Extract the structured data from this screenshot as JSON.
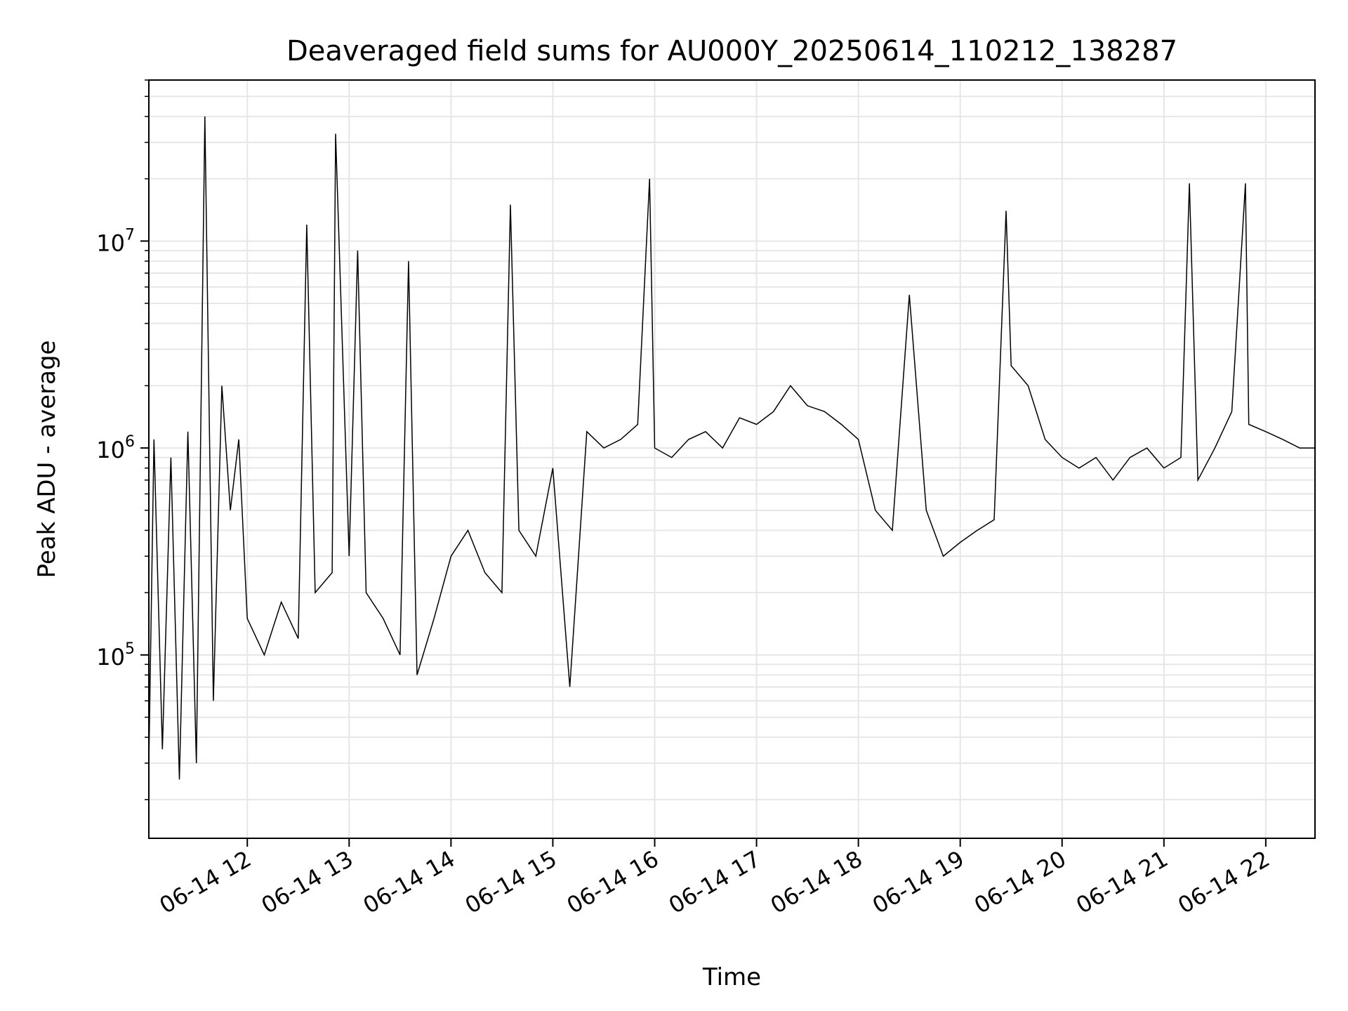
{
  "chart_data": {
    "type": "line",
    "title": "Deaveraged field sums for AU000Y_20250614_110212_138287",
    "xlabel": "Time",
    "ylabel": "Peak ADU - average",
    "yscale": "log",
    "ylim": [
      13000,
      60000000
    ],
    "xlim": [
      "2025-06-14 11:02",
      "2025-06-14 22:29"
    ],
    "grid": true,
    "line_color": "#000000",
    "grid_color": "#e6e6e6",
    "x_ticks": [
      {
        "value": "2025-06-14 12:00",
        "label": "06-14 12"
      },
      {
        "value": "2025-06-14 13:00",
        "label": "06-14 13"
      },
      {
        "value": "2025-06-14 14:00",
        "label": "06-14 14"
      },
      {
        "value": "2025-06-14 15:00",
        "label": "06-14 15"
      },
      {
        "value": "2025-06-14 16:00",
        "label": "06-14 16"
      },
      {
        "value": "2025-06-14 17:00",
        "label": "06-14 17"
      },
      {
        "value": "2025-06-14 18:00",
        "label": "06-14 18"
      },
      {
        "value": "2025-06-14 19:00",
        "label": "06-14 19"
      },
      {
        "value": "2025-06-14 20:00",
        "label": "06-14 20"
      },
      {
        "value": "2025-06-14 21:00",
        "label": "06-14 21"
      },
      {
        "value": "2025-06-14 22:00",
        "label": "06-14 22"
      }
    ],
    "y_ticks": [
      {
        "value": 100000,
        "base": "10",
        "exp": "5"
      },
      {
        "value": 1000000,
        "base": "10",
        "exp": "6"
      },
      {
        "value": 10000000,
        "base": "10",
        "exp": "7"
      }
    ],
    "series": [
      {
        "x": [
          "2025-06-14 11:02",
          "2025-06-14 11:05",
          "2025-06-14 11:10",
          "2025-06-14 11:15",
          "2025-06-14 11:20",
          "2025-06-14 11:25",
          "2025-06-14 11:30",
          "2025-06-14 11:35",
          "2025-06-14 11:40",
          "2025-06-14 11:45",
          "2025-06-14 11:50",
          "2025-06-14 11:55",
          "2025-06-14 12:00",
          "2025-06-14 12:10",
          "2025-06-14 12:20",
          "2025-06-14 12:30",
          "2025-06-14 12:35",
          "2025-06-14 12:40",
          "2025-06-14 12:50",
          "2025-06-14 12:52",
          "2025-06-14 13:00",
          "2025-06-14 13:05",
          "2025-06-14 13:10",
          "2025-06-14 13:20",
          "2025-06-14 13:30",
          "2025-06-14 13:35",
          "2025-06-14 13:40",
          "2025-06-14 13:50",
          "2025-06-14 14:00",
          "2025-06-14 14:10",
          "2025-06-14 14:20",
          "2025-06-14 14:30",
          "2025-06-14 14:35",
          "2025-06-14 14:40",
          "2025-06-14 14:50",
          "2025-06-14 15:00",
          "2025-06-14 15:10",
          "2025-06-14 15:20",
          "2025-06-14 15:30",
          "2025-06-14 15:40",
          "2025-06-14 15:50",
          "2025-06-14 15:57",
          "2025-06-14 16:00",
          "2025-06-14 16:10",
          "2025-06-14 16:20",
          "2025-06-14 16:30",
          "2025-06-14 16:40",
          "2025-06-14 16:50",
          "2025-06-14 17:00",
          "2025-06-14 17:10",
          "2025-06-14 17:20",
          "2025-06-14 17:30",
          "2025-06-14 17:40",
          "2025-06-14 17:50",
          "2025-06-14 18:00",
          "2025-06-14 18:10",
          "2025-06-14 18:20",
          "2025-06-14 18:30",
          "2025-06-14 18:40",
          "2025-06-14 18:50",
          "2025-06-14 19:00",
          "2025-06-14 19:10",
          "2025-06-14 19:20",
          "2025-06-14 19:27",
          "2025-06-14 19:30",
          "2025-06-14 19:40",
          "2025-06-14 19:50",
          "2025-06-14 20:00",
          "2025-06-14 20:10",
          "2025-06-14 20:20",
          "2025-06-14 20:30",
          "2025-06-14 20:40",
          "2025-06-14 20:50",
          "2025-06-14 21:00",
          "2025-06-14 21:10",
          "2025-06-14 21:15",
          "2025-06-14 21:20",
          "2025-06-14 21:30",
          "2025-06-14 21:40",
          "2025-06-14 21:48",
          "2025-06-14 21:50",
          "2025-06-14 22:00",
          "2025-06-14 22:10",
          "2025-06-14 22:20",
          "2025-06-14 22:29"
        ],
        "values": [
          30000,
          1100000,
          35000,
          900000,
          25000,
          1200000,
          30000,
          40000000,
          60000,
          2000000,
          500000,
          1100000,
          150000,
          100000,
          180000,
          120000,
          12000000,
          200000,
          250000,
          33000000,
          300000,
          9000000,
          200000,
          150000,
          100000,
          8000000,
          80000,
          150000,
          300000,
          400000,
          250000,
          200000,
          15000000,
          400000,
          300000,
          800000,
          70000,
          1200000,
          1000000,
          1100000,
          1300000,
          20000000,
          1000000,
          900000,
          1100000,
          1200000,
          1000000,
          1400000,
          1300000,
          1500000,
          2000000,
          1600000,
          1500000,
          1300000,
          1100000,
          500000,
          400000,
          5500000,
          500000,
          300000,
          350000,
          400000,
          450000,
          14000000,
          2500000,
          2000000,
          1100000,
          900000,
          800000,
          900000,
          700000,
          900000,
          1000000,
          800000,
          900000,
          19000000,
          700000,
          1000000,
          1500000,
          19000000,
          1300000,
          1200000,
          1100000,
          1000000,
          1000000
        ]
      }
    ]
  }
}
